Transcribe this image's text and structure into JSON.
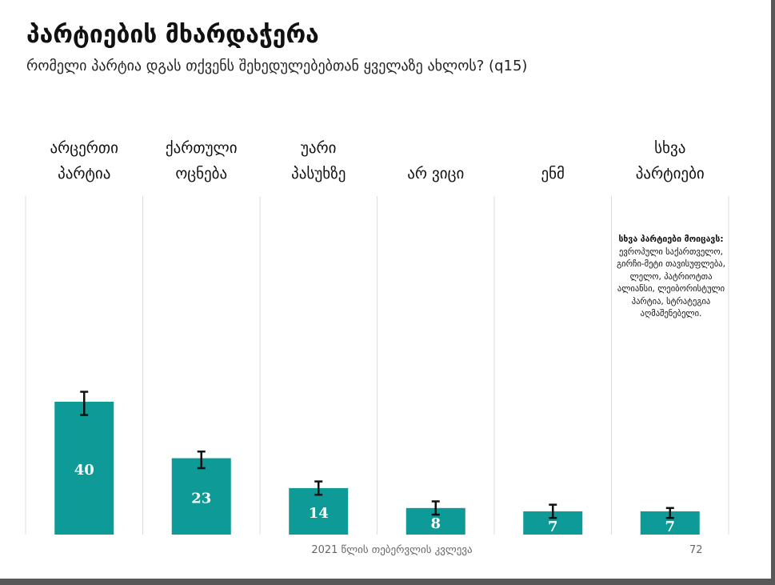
{
  "title": "პარტიების მხარდაჭერა",
  "subtitle": "რომელი პარტია დგას თქვენს შეხედულებებთან ყველაზე ახლოს? (q15)",
  "chart_data": {
    "type": "bar",
    "categories": [
      [
        "არცერთი",
        "პარტია"
      ],
      [
        "ქართული",
        "ოცნება"
      ],
      [
        "უარი",
        "პასუხზე"
      ],
      [
        "არ ვიცი"
      ],
      [
        "ენმ"
      ],
      [
        "სხვა",
        "პარტიები"
      ]
    ],
    "values": [
      40,
      23,
      14,
      8,
      7,
      7
    ],
    "error_bars": [
      [
        36,
        43
      ],
      [
        20,
        25
      ],
      [
        12,
        16
      ],
      [
        6,
        10
      ],
      [
        5,
        9
      ],
      [
        5,
        8
      ]
    ],
    "ylim": [
      0,
      100
    ],
    "bar_color": "#0e9a96",
    "grid": "vertical-separators"
  },
  "note": {
    "title": "სხვა პარტიები მოიცავს:",
    "body": "ევროპული საქართველო, გირჩი-მეტი თავისუფლება, ლელო, პატრიოტთა ალიანსი, ლეიბორისტული პარტია, სტრატეგია აღმაშენებელი."
  },
  "footer": {
    "source": "2021 წლის თებერვლის კვლევა",
    "page": "72"
  }
}
